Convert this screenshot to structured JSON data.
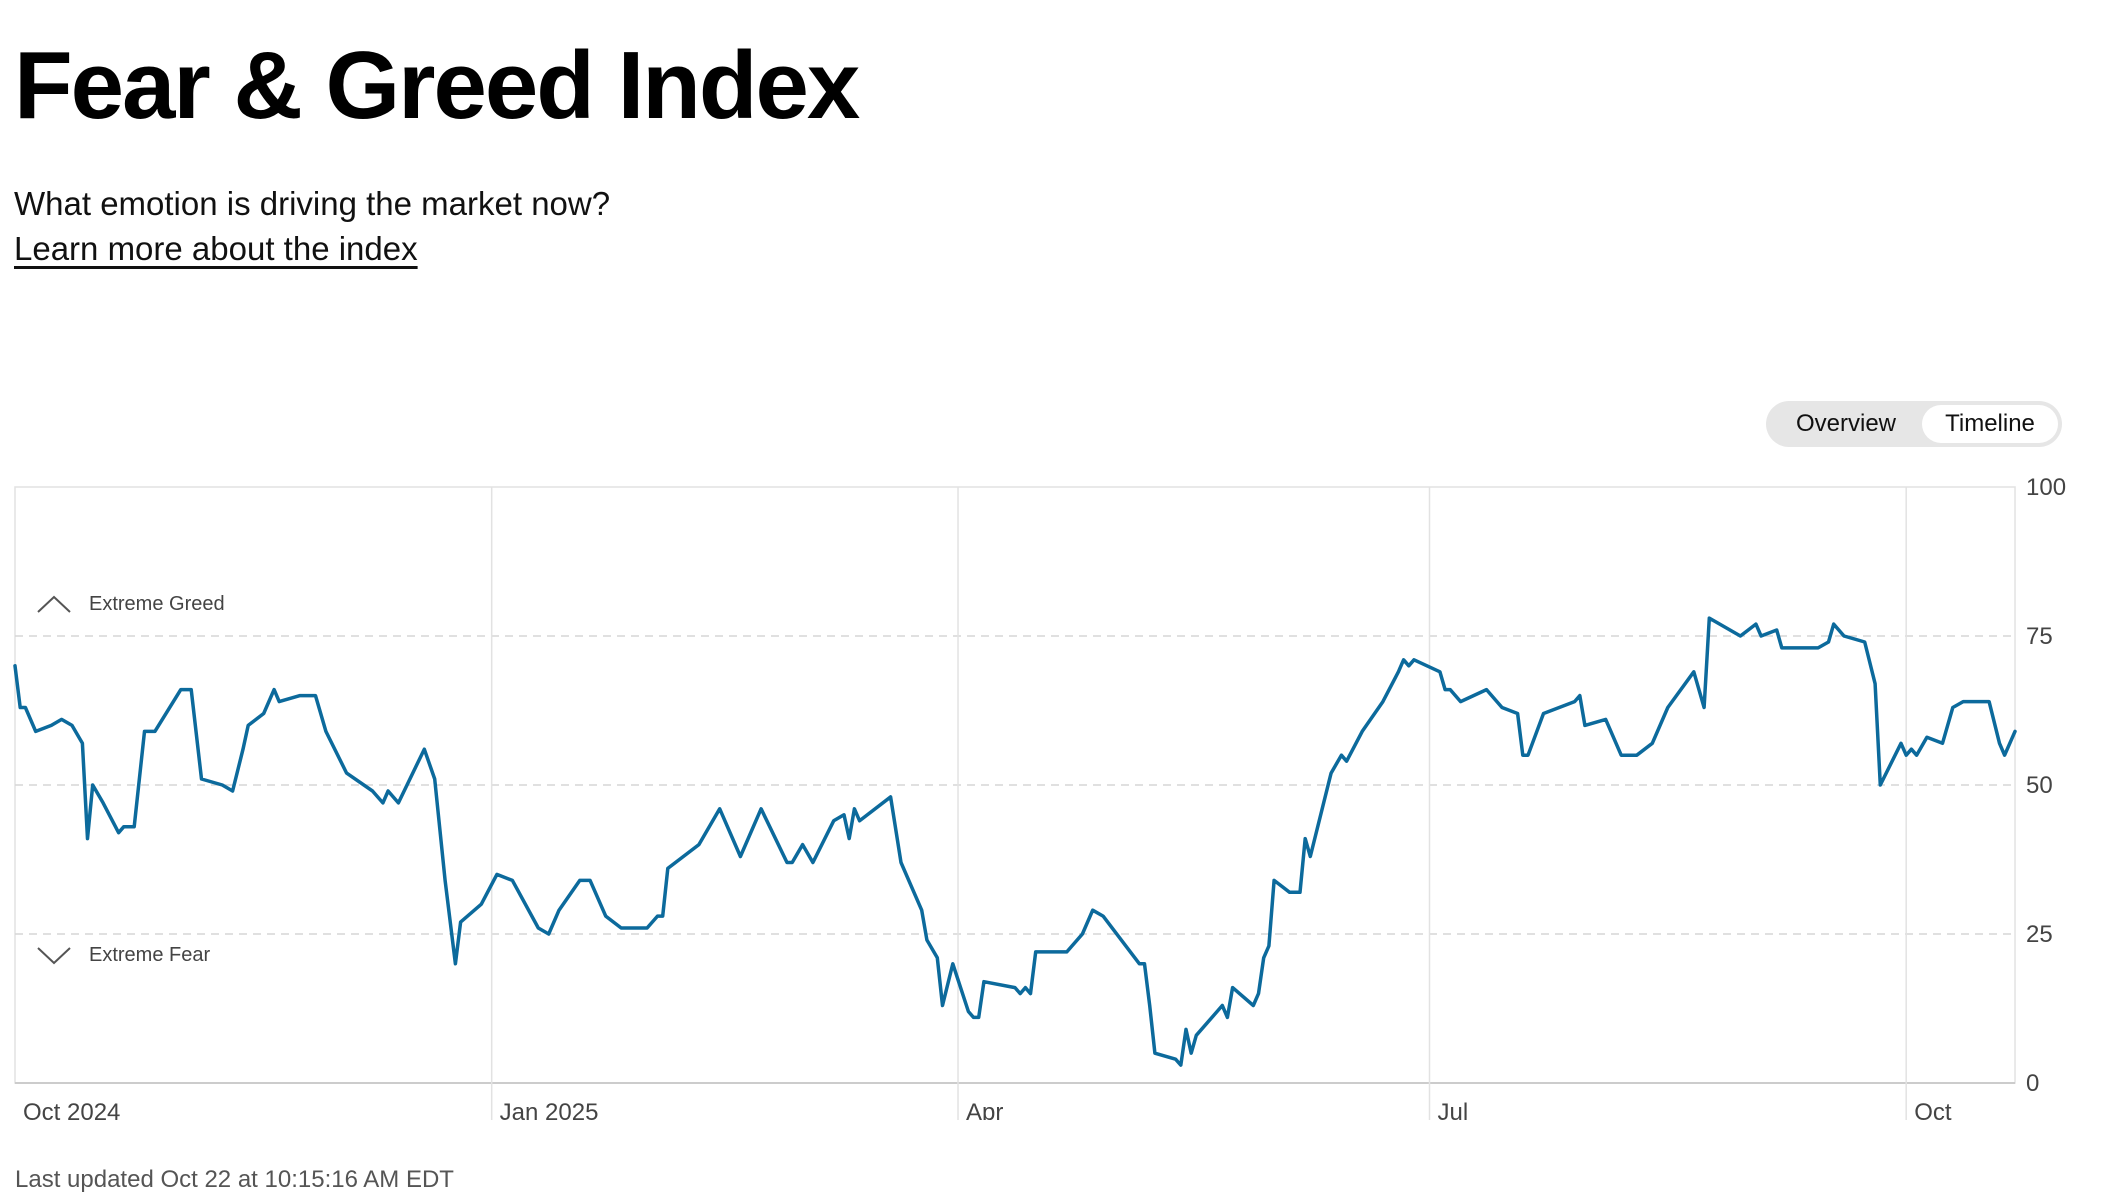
{
  "header": {
    "title": "Fear & Greed Index",
    "subtitle": "What emotion is driving the market now?",
    "learn_more": "Learn more about the index"
  },
  "toggle": {
    "options": [
      "Overview",
      "Timeline"
    ],
    "selected": "Timeline"
  },
  "footer": {
    "last_updated": "Last updated Oct 22 at 10:15:16 AM EDT"
  },
  "colors": {
    "line": "#0c6a9c",
    "grid": "#e2e2e2",
    "dashed": "#d6d6d6"
  },
  "icons": {
    "greed": "chevron-up-icon",
    "fear": "chevron-down-icon"
  },
  "chart_data": {
    "type": "line",
    "ylim": [
      0,
      100
    ],
    "y_ticks": [
      "100",
      "75",
      "50",
      "25",
      "0"
    ],
    "x_ticks": [
      {
        "label": "Oct 2024",
        "date": "2024-10-01"
      },
      {
        "label": "Jan 2025",
        "date": "2025-01-01"
      },
      {
        "label": "Apr",
        "date": "2025-04-01"
      },
      {
        "label": "Jul",
        "date": "2025-07-01"
      },
      {
        "label": "Oct",
        "date": "2025-10-01"
      }
    ],
    "xlim": [
      "2024-10-01",
      "2025-10-22"
    ],
    "zones": [
      {
        "label": "Extreme Greed",
        "threshold": 75
      },
      {
        "label": "Extreme Fear",
        "threshold": 25
      }
    ],
    "series": [
      {
        "points": [
          [
            "2024-10-01",
            70
          ],
          [
            "2024-10-02",
            63
          ],
          [
            "2024-10-03",
            63
          ],
          [
            "2024-10-05",
            59
          ],
          [
            "2024-10-08",
            60
          ],
          [
            "2024-10-10",
            61
          ],
          [
            "2024-10-12",
            60
          ],
          [
            "2024-10-14",
            57
          ],
          [
            "2024-10-15",
            41
          ],
          [
            "2024-10-16",
            50
          ],
          [
            "2024-10-18",
            47
          ],
          [
            "2024-10-21",
            42
          ],
          [
            "2024-10-22",
            43
          ],
          [
            "2024-10-24",
            43
          ],
          [
            "2024-10-26",
            59
          ],
          [
            "2024-10-28",
            59
          ],
          [
            "2024-11-02",
            66
          ],
          [
            "2024-11-04",
            66
          ],
          [
            "2024-11-06",
            51
          ],
          [
            "2024-11-10",
            50
          ],
          [
            "2024-11-12",
            49
          ],
          [
            "2024-11-14",
            56
          ],
          [
            "2024-11-15",
            60
          ],
          [
            "2024-11-18",
            62
          ],
          [
            "2024-11-20",
            66
          ],
          [
            "2024-11-21",
            64
          ],
          [
            "2024-11-25",
            65
          ],
          [
            "2024-11-28",
            65
          ],
          [
            "2024-11-30",
            59
          ],
          [
            "2024-12-04",
            52
          ],
          [
            "2024-12-09",
            49
          ],
          [
            "2024-12-11",
            47
          ],
          [
            "2024-12-12",
            49
          ],
          [
            "2024-12-14",
            47
          ],
          [
            "2024-12-19",
            56
          ],
          [
            "2024-12-21",
            51
          ],
          [
            "2024-12-23",
            34
          ],
          [
            "2024-12-25",
            20
          ],
          [
            "2024-12-26",
            27
          ],
          [
            "2024-12-30",
            30
          ],
          [
            "2025-01-02",
            35
          ],
          [
            "2025-01-05",
            34
          ],
          [
            "2025-01-10",
            26
          ],
          [
            "2025-01-12",
            25
          ],
          [
            "2025-01-14",
            29
          ],
          [
            "2025-01-18",
            34
          ],
          [
            "2025-01-20",
            34
          ],
          [
            "2025-01-23",
            28
          ],
          [
            "2025-01-26",
            26
          ],
          [
            "2025-01-31",
            26
          ],
          [
            "2025-02-02",
            28
          ],
          [
            "2025-02-03",
            28
          ],
          [
            "2025-02-04",
            36
          ],
          [
            "2025-02-10",
            40
          ],
          [
            "2025-02-14",
            46
          ],
          [
            "2025-02-18",
            38
          ],
          [
            "2025-02-22",
            46
          ],
          [
            "2025-02-27",
            37
          ],
          [
            "2025-02-28",
            37
          ],
          [
            "2025-03-02",
            40
          ],
          [
            "2025-03-04",
            37
          ],
          [
            "2025-03-08",
            44
          ],
          [
            "2025-03-10",
            45
          ],
          [
            "2025-03-11",
            41
          ],
          [
            "2025-03-12",
            46
          ],
          [
            "2025-03-13",
            44
          ],
          [
            "2025-03-19",
            48
          ],
          [
            "2025-03-21",
            37
          ],
          [
            "2025-03-25",
            29
          ],
          [
            "2025-03-26",
            24
          ],
          [
            "2025-03-28",
            21
          ],
          [
            "2025-03-29",
            13
          ],
          [
            "2025-03-31",
            20
          ],
          [
            "2025-04-03",
            12
          ],
          [
            "2025-04-04",
            11
          ],
          [
            "2025-04-05",
            11
          ],
          [
            "2025-04-06",
            17
          ],
          [
            "2025-04-12",
            16
          ],
          [
            "2025-04-13",
            15
          ],
          [
            "2025-04-14",
            16
          ],
          [
            "2025-04-15",
            15
          ],
          [
            "2025-04-16",
            22
          ],
          [
            "2025-04-20",
            22
          ],
          [
            "2025-04-22",
            22
          ],
          [
            "2025-04-25",
            25
          ],
          [
            "2025-04-27",
            29
          ],
          [
            "2025-04-29",
            28
          ],
          [
            "2025-05-06",
            20
          ],
          [
            "2025-05-07",
            20
          ],
          [
            "2025-05-08",
            13
          ],
          [
            "2025-05-09",
            5
          ],
          [
            "2025-05-13",
            4
          ],
          [
            "2025-05-14",
            3
          ],
          [
            "2025-05-15",
            9
          ],
          [
            "2025-05-16",
            5
          ],
          [
            "2025-05-17",
            8
          ],
          [
            "2025-05-21",
            12
          ],
          [
            "2025-05-22",
            13
          ],
          [
            "2025-05-23",
            11
          ],
          [
            "2025-05-24",
            16
          ],
          [
            "2025-05-28",
            13
          ],
          [
            "2025-05-29",
            15
          ],
          [
            "2025-05-30",
            21
          ],
          [
            "2025-05-31",
            23
          ],
          [
            "2025-06-01",
            34
          ],
          [
            "2025-06-04",
            32
          ],
          [
            "2025-06-06",
            32
          ],
          [
            "2025-06-07",
            41
          ],
          [
            "2025-06-08",
            38
          ],
          [
            "2025-06-12",
            52
          ],
          [
            "2025-06-14",
            55
          ],
          [
            "2025-06-15",
            54
          ],
          [
            "2025-06-18",
            59
          ],
          [
            "2025-06-22",
            64
          ],
          [
            "2025-06-25",
            69
          ],
          [
            "2025-06-26",
            71
          ],
          [
            "2025-06-27",
            70
          ],
          [
            "2025-06-28",
            71
          ],
          [
            "2025-07-03",
            69
          ],
          [
            "2025-07-04",
            66
          ],
          [
            "2025-07-05",
            66
          ],
          [
            "2025-07-07",
            64
          ],
          [
            "2025-07-12",
            66
          ],
          [
            "2025-07-15",
            63
          ],
          [
            "2025-07-18",
            62
          ],
          [
            "2025-07-19",
            55
          ],
          [
            "2025-07-20",
            55
          ],
          [
            "2025-07-23",
            62
          ],
          [
            "2025-07-29",
            64
          ],
          [
            "2025-07-30",
            65
          ],
          [
            "2025-07-31",
            60
          ],
          [
            "2025-08-04",
            61
          ],
          [
            "2025-08-07",
            55
          ],
          [
            "2025-08-10",
            55
          ],
          [
            "2025-08-13",
            57
          ],
          [
            "2025-08-16",
            63
          ],
          [
            "2025-08-21",
            69
          ],
          [
            "2025-08-23",
            63
          ],
          [
            "2025-08-24",
            78
          ],
          [
            "2025-08-30",
            75
          ],
          [
            "2025-09-02",
            77
          ],
          [
            "2025-09-03",
            75
          ],
          [
            "2025-09-06",
            76
          ],
          [
            "2025-09-07",
            73
          ],
          [
            "2025-09-08",
            73
          ],
          [
            "2025-09-10",
            73
          ],
          [
            "2025-09-14",
            73
          ],
          [
            "2025-09-16",
            74
          ],
          [
            "2025-09-17",
            77
          ],
          [
            "2025-09-19",
            75
          ],
          [
            "2025-09-23",
            74
          ],
          [
            "2025-09-25",
            67
          ],
          [
            "2025-09-26",
            50
          ],
          [
            "2025-09-30",
            57
          ],
          [
            "2025-10-01",
            55
          ],
          [
            "2025-10-02",
            56
          ],
          [
            "2025-10-03",
            55
          ],
          [
            "2025-10-05",
            58
          ],
          [
            "2025-10-08",
            57
          ],
          [
            "2025-10-10",
            63
          ],
          [
            "2025-10-12",
            64
          ],
          [
            "2025-10-17",
            64
          ],
          [
            "2025-10-19",
            57
          ],
          [
            "2025-10-20",
            55
          ],
          [
            "2025-10-22",
            59
          ]
        ]
      }
    ]
  }
}
